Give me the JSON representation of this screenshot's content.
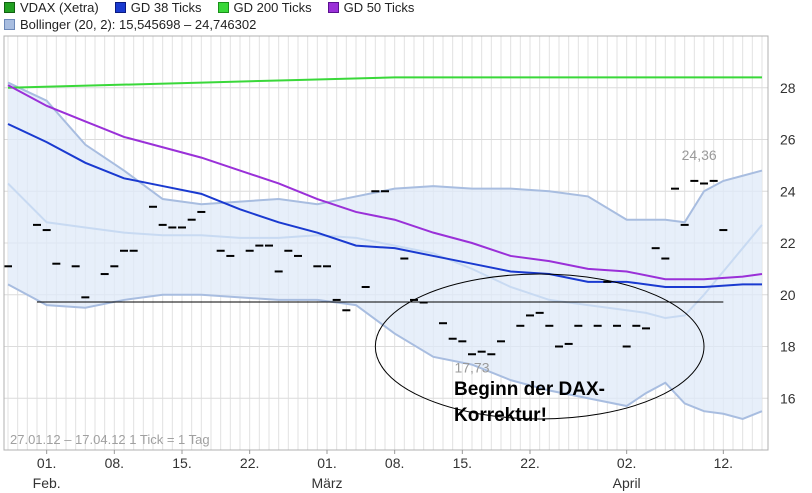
{
  "legend": {
    "items": [
      {
        "label": "VDAX (Xetra)",
        "color": "#22a022"
      },
      {
        "label": "GD 38 Ticks",
        "color": "#1a3ad0"
      },
      {
        "label": "GD 200 Ticks",
        "color": "#3ad83a"
      },
      {
        "label": "GD 50 Ticks",
        "color": "#9a30d8"
      }
    ],
    "bollinger": {
      "label": "Bollinger (20, 2): 15,545698 – 24,746302",
      "color": "#a8bde0"
    }
  },
  "chart_data": {
    "type": "line",
    "subtype": "tick-chart with moving averages and bollinger band",
    "x_ticks": [
      {
        "day": 4,
        "label": "01.",
        "sub": "Feb."
      },
      {
        "day": 11,
        "label": "08.",
        "sub": ""
      },
      {
        "day": 18,
        "label": "15.",
        "sub": ""
      },
      {
        "day": 25,
        "label": "22.",
        "sub": ""
      },
      {
        "day": 33,
        "label": "01.",
        "sub": "März"
      },
      {
        "day": 40,
        "label": "08.",
        "sub": ""
      },
      {
        "day": 47,
        "label": "15.",
        "sub": ""
      },
      {
        "day": 54,
        "label": "22.",
        "sub": ""
      },
      {
        "day": 64,
        "label": "02.",
        "sub": "April"
      },
      {
        "day": 74,
        "label": "12.",
        "sub": ""
      }
    ],
    "xlim": [
      0,
      78
    ],
    "ylim": [
      14.0,
      30.0
    ],
    "y_ticks": [
      16,
      18,
      20,
      22,
      24,
      26,
      28
    ],
    "grid": true,
    "ticks": [
      [
        0,
        21.1
      ],
      [
        3,
        22.7
      ],
      [
        4,
        22.5
      ],
      [
        5,
        21.2
      ],
      [
        7,
        21.1
      ],
      [
        8,
        19.9
      ],
      [
        10,
        20.8
      ],
      [
        11,
        21.1
      ],
      [
        12,
        21.7
      ],
      [
        13,
        21.7
      ],
      [
        15,
        23.4
      ],
      [
        16,
        22.7
      ],
      [
        17,
        22.6
      ],
      [
        18,
        22.6
      ],
      [
        19,
        22.9
      ],
      [
        20,
        23.2
      ],
      [
        22,
        21.7
      ],
      [
        23,
        21.5
      ],
      [
        25,
        21.7
      ],
      [
        26,
        21.9
      ],
      [
        27,
        21.9
      ],
      [
        28,
        20.9
      ],
      [
        29,
        21.7
      ],
      [
        30,
        21.5
      ],
      [
        32,
        21.1
      ],
      [
        33,
        21.1
      ],
      [
        34,
        19.8
      ],
      [
        35,
        19.4
      ],
      [
        37,
        20.3
      ],
      [
        38,
        24.0
      ],
      [
        39,
        24.0
      ],
      [
        41,
        21.4
      ],
      [
        42,
        19.8
      ],
      [
        43,
        19.7
      ],
      [
        45,
        18.9
      ],
      [
        46,
        18.3
      ],
      [
        47,
        18.2
      ],
      [
        48,
        17.7
      ],
      [
        49,
        17.8
      ],
      [
        50,
        17.7
      ],
      [
        51,
        18.2
      ],
      [
        53,
        18.8
      ],
      [
        54,
        19.2
      ],
      [
        55,
        19.3
      ],
      [
        56,
        18.8
      ],
      [
        57,
        18.0
      ],
      [
        58,
        18.1
      ],
      [
        59,
        18.8
      ],
      [
        61,
        18.8
      ],
      [
        62,
        20.5
      ],
      [
        63,
        18.8
      ],
      [
        64,
        18.0
      ],
      [
        65,
        18.8
      ],
      [
        66,
        18.7
      ],
      [
        67,
        21.8
      ],
      [
        68,
        21.4
      ],
      [
        69,
        24.1
      ],
      [
        70,
        22.7
      ],
      [
        71,
        24.4
      ],
      [
        72,
        24.3
      ],
      [
        73,
        24.4
      ],
      [
        74,
        22.5
      ]
    ],
    "series": [
      {
        "name": "GD 38 Ticks",
        "color": "#1a3ad0",
        "x": [
          0,
          4,
          8,
          12,
          16,
          20,
          24,
          28,
          32,
          36,
          40,
          44,
          48,
          52,
          56,
          60,
          64,
          68,
          72,
          76,
          78
        ],
        "y": [
          26.6,
          25.9,
          25.1,
          24.5,
          24.2,
          23.9,
          23.3,
          22.8,
          22.4,
          21.9,
          21.8,
          21.5,
          21.2,
          20.9,
          20.8,
          20.5,
          20.5,
          20.3,
          20.3,
          20.4,
          20.4
        ]
      },
      {
        "name": "GD 200 Ticks",
        "color": "#3ad83a",
        "x": [
          0,
          10,
          20,
          30,
          40,
          50,
          60,
          70,
          78
        ],
        "y": [
          28.0,
          28.1,
          28.2,
          28.3,
          28.4,
          28.4,
          28.4,
          28.4,
          28.4
        ]
      },
      {
        "name": "GD 50 Ticks",
        "color": "#9a30d8",
        "x": [
          0,
          4,
          8,
          12,
          16,
          20,
          24,
          28,
          32,
          36,
          40,
          44,
          48,
          52,
          56,
          60,
          64,
          68,
          72,
          76,
          78
        ],
        "y": [
          28.1,
          27.3,
          26.7,
          26.1,
          25.7,
          25.3,
          24.8,
          24.3,
          23.7,
          23.2,
          22.9,
          22.4,
          22.0,
          21.5,
          21.3,
          21.0,
          20.9,
          20.6,
          20.6,
          20.7,
          20.8
        ]
      }
    ],
    "bollinger": {
      "x": [
        0,
        4,
        8,
        12,
        16,
        20,
        24,
        28,
        32,
        36,
        40,
        44,
        48,
        52,
        56,
        60,
        64,
        66,
        68,
        70,
        72,
        74,
        76,
        78
      ],
      "upper": [
        28.2,
        27.5,
        25.8,
        24.8,
        23.7,
        23.5,
        23.6,
        23.7,
        23.5,
        23.8,
        24.1,
        24.2,
        24.1,
        24.1,
        24.0,
        23.8,
        22.9,
        22.9,
        22.9,
        22.8,
        24.0,
        24.4,
        24.6,
        24.8
      ],
      "middle": [
        24.3,
        22.8,
        22.6,
        22.4,
        22.3,
        22.3,
        22.2,
        22.2,
        22.3,
        22.2,
        21.9,
        21.6,
        21.0,
        20.3,
        19.8,
        19.6,
        19.4,
        19.3,
        19.1,
        19.2,
        20.0,
        20.9,
        21.8,
        22.7
      ],
      "lower": [
        20.4,
        19.6,
        19.5,
        19.8,
        20.0,
        20.0,
        19.9,
        19.8,
        19.8,
        19.6,
        18.5,
        17.6,
        17.3,
        16.7,
        16.3,
        16.0,
        15.7,
        16.2,
        16.6,
        15.8,
        15.5,
        15.4,
        15.2,
        15.5
      ]
    },
    "reference_line": {
      "y": 19.72,
      "x_from": 3,
      "x_to": 74
    },
    "labels": [
      {
        "text": "24,36",
        "x": 71.5,
        "y": 25.2
      },
      {
        "text": "17,73",
        "x": 48,
        "y": 17.0
      }
    ],
    "annotation": {
      "text_line1": "Beginn der DAX-",
      "text_line2": "Korrektur!",
      "ellipse": {
        "cx": 55,
        "cy": 18.0,
        "rx": 17,
        "ry": 2.8
      }
    },
    "footer": "27.01.12 – 17.04.12   1 Tick = 1 Tag"
  }
}
